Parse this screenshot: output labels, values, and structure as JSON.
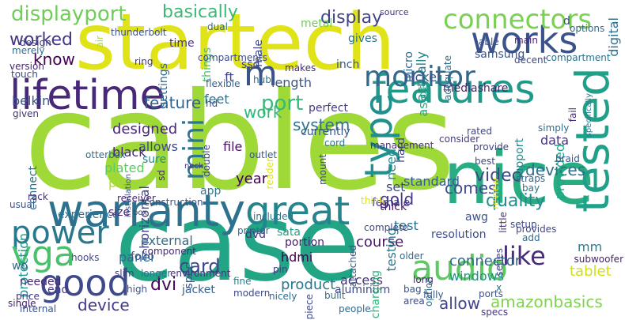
{
  "words": [
    {
      "text": "cables",
      "color": "#9fd938"
    },
    {
      "text": "case",
      "color": "#21a585"
    },
    {
      "text": "startech",
      "color": "#dfe318"
    },
    {
      "text": "nice",
      "color": "#27ad81"
    },
    {
      "text": "warranty",
      "color": "#2c728e"
    },
    {
      "text": "great",
      "color": "#25858e"
    },
    {
      "text": "lifetime",
      "color": "#482878"
    },
    {
      "text": "features",
      "color": "#1f9a8a"
    },
    {
      "text": "works",
      "color": "#3b528b"
    },
    {
      "text": "tested",
      "color": "#1fa088"
    },
    {
      "text": "audio",
      "color": "#5ec962"
    },
    {
      "text": "good",
      "color": "#3e4a89"
    },
    {
      "text": "power",
      "color": "#2a788e"
    },
    {
      "text": "vga",
      "color": "#4ac16d"
    },
    {
      "text": "type",
      "color": "#218f8d"
    },
    {
      "text": "monitor",
      "color": "#31688e"
    },
    {
      "text": "connectors",
      "color": "#7ad151"
    },
    {
      "text": "mini",
      "color": "#2b758e"
    },
    {
      "text": "m",
      "color": "#3b528b"
    },
    {
      "text": "like",
      "color": "#472c7a"
    },
    {
      "text": "displayport",
      "color": "#6ece58"
    },
    {
      "text": "basically",
      "color": "#3aba76"
    },
    {
      "text": "worked",
      "color": "#453781"
    },
    {
      "text": "display",
      "color": "#414487"
    },
    {
      "text": "know",
      "color": "#440154"
    },
    {
      "text": "port",
      "color": "#38b977"
    },
    {
      "text": "feature",
      "color": "#33638d"
    },
    {
      "text": "work",
      "color": "#31b57b"
    },
    {
      "text": "system",
      "color": "#2c728e"
    },
    {
      "text": "designed",
      "color": "#482576"
    },
    {
      "text": "video",
      "color": "#3f4788"
    },
    {
      "text": "quality",
      "color": "#228c8d"
    },
    {
      "text": "comes",
      "color": "#3e4c8a"
    },
    {
      "text": "devices",
      "color": "#2e6e8e"
    },
    {
      "text": "gold",
      "color": "#443a83"
    },
    {
      "text": "card",
      "color": "#3f4889"
    },
    {
      "text": "connector",
      "color": "#32648e"
    },
    {
      "text": "windows",
      "color": "#20928c"
    },
    {
      "text": "dvi",
      "color": "#450559"
    },
    {
      "text": "product",
      "color": "#2a788e"
    },
    {
      "text": "access",
      "color": "#46337f"
    },
    {
      "text": "allow",
      "color": "#414487"
    },
    {
      "text": "course",
      "color": "#481769"
    },
    {
      "text": "device",
      "color": "#443983"
    },
    {
      "text": "amazonbasics",
      "color": "#7fd34e"
    },
    {
      "text": "tablet",
      "color": "#d0e11c"
    },
    {
      "text": "external",
      "color": "#2e6f8e"
    },
    {
      "text": "panel",
      "color": "#306a8e"
    },
    {
      "text": "jacket",
      "color": "#35608d"
    },
    {
      "text": "spec",
      "color": "#3b528b"
    },
    {
      "text": "year",
      "color": "#440154"
    },
    {
      "text": "length",
      "color": "#38588c"
    },
    {
      "text": "feet",
      "color": "#2b758e"
    },
    {
      "text": "file",
      "color": "#471063"
    },
    {
      "text": "allows",
      "color": "#3e4a89"
    },
    {
      "text": "black",
      "color": "#482475"
    },
    {
      "text": "plated",
      "color": "#5ec962"
    },
    {
      "text": "pvc",
      "color": "#addc30"
    },
    {
      "text": "belkin",
      "color": "#39558c"
    },
    {
      "text": "ft",
      "color": "#414487"
    },
    {
      "text": "nickel",
      "color": "#3b528b"
    },
    {
      "text": "data",
      "color": "#46327e"
    },
    {
      "text": "standard",
      "color": "#365c8d"
    },
    {
      "text": "provided",
      "color": "#20a386"
    },
    {
      "text": "support",
      "color": "#24868e"
    },
    {
      "text": "actually",
      "color": "#26818e"
    },
    {
      "text": "samsung",
      "color": "#3a538b"
    },
    {
      "text": "mediashare",
      "color": "#481f70"
    },
    {
      "text": "metal",
      "color": "#6ece58"
    },
    {
      "text": "gives",
      "color": "#2d718e"
    },
    {
      "text": "male",
      "color": "#3f4788"
    },
    {
      "text": "things",
      "color": "#4ac16d"
    },
    {
      "text": "settings",
      "color": "#31688e"
    },
    {
      "text": "time",
      "color": "#463480"
    },
    {
      "text": "aside",
      "color": "#25ac82"
    },
    {
      "text": "need",
      "color": "#228d8d"
    },
    {
      "text": "hard",
      "color": "#3e4989"
    },
    {
      "text": "awg",
      "color": "#3b528b"
    },
    {
      "text": "test",
      "color": "#2e6e8e"
    },
    {
      "text": "testing",
      "color": "#2a778e"
    },
    {
      "text": "hdmi",
      "color": "#440154"
    },
    {
      "text": "sata",
      "color": "#1fa187"
    },
    {
      "text": "portion",
      "color": "#482173"
    },
    {
      "text": "resolution",
      "color": "#3e4a89"
    },
    {
      "text": "mm",
      "color": "#27808e"
    },
    {
      "text": "end",
      "color": "#453882"
    },
    {
      "text": "sure",
      "color": "#228c8d"
    },
    {
      "text": "folio",
      "color": "#3b528b"
    },
    {
      "text": "horizontal",
      "color": "#414487"
    },
    {
      "text": "dvd",
      "color": "#472d7b"
    },
    {
      "text": "perfect",
      "color": "#433e85"
    },
    {
      "text": "micro",
      "color": "#31688e"
    },
    {
      "text": "inch",
      "color": "#38588c"
    },
    {
      "text": "digital",
      "color": "#2d708e"
    },
    {
      "text": "little",
      "color": "#46307e"
    },
    {
      "text": "set",
      "color": "#3e4c8a"
    },
    {
      "text": "thick",
      "color": "#481668"
    },
    {
      "text": "female",
      "color": "#443b84"
    },
    {
      "text": "protection",
      "color": "#21918c"
    },
    {
      "text": "connect",
      "color": "#2c728e"
    },
    {
      "text": "needed",
      "color": "#482878"
    },
    {
      "text": "wo",
      "color": "#31688e"
    },
    {
      "text": "aluminum",
      "color": "#3f4889"
    },
    {
      "text": "charging",
      "color": "#2fb47c"
    },
    {
      "text": "experience",
      "color": "#2c728e"
    },
    {
      "text": "size",
      "color": "#482576"
    },
    {
      "text": "app",
      "color": "#2a788e"
    },
    {
      "text": "currently",
      "color": "#38588c"
    },
    {
      "text": "ssd",
      "color": "#414487"
    },
    {
      "text": "hd",
      "color": "#3b528b"
    },
    {
      "text": "flexible",
      "color": "#33638d"
    },
    {
      "text": "merely",
      "color": "#2e6e8e"
    },
    {
      "text": "design",
      "color": "#433e85"
    },
    {
      "text": "touch",
      "color": "#3f4788"
    },
    {
      "text": "given",
      "color": "#46327e"
    },
    {
      "text": "hub",
      "color": "#2c728e"
    },
    {
      "text": "dual",
      "color": "#31688e"
    },
    {
      "text": "makes",
      "color": "#472c7a"
    },
    {
      "text": "compartments",
      "color": "#3e4c8a"
    },
    {
      "text": "ring",
      "color": "#443983"
    },
    {
      "text": "version",
      "color": "#482878"
    },
    {
      "text": "air",
      "color": "#addc30"
    },
    {
      "text": "thunderbolt",
      "color": "#3b528b"
    },
    {
      "text": "source",
      "color": "#46337f"
    },
    {
      "text": "able",
      "color": "#3a538b"
    },
    {
      "text": "adequate",
      "color": "#2d708e"
    },
    {
      "text": "decent",
      "color": "#3e4989"
    },
    {
      "text": "compartment",
      "color": "#2c728e"
    },
    {
      "text": "options",
      "color": "#31688e"
    },
    {
      "text": "main",
      "color": "#482475"
    },
    {
      "text": "d",
      "color": "#3b528b"
    },
    {
      "text": "rated",
      "color": "#3f4889"
    },
    {
      "text": "simply",
      "color": "#2e6e8e"
    },
    {
      "text": "braid",
      "color": "#3b528b"
    },
    {
      "text": "fail",
      "color": "#482878"
    },
    {
      "text": "consider",
      "color": "#443b84"
    },
    {
      "text": "management",
      "color": "#46327e"
    },
    {
      "text": "cord",
      "color": "#2a788e"
    },
    {
      "text": "provide",
      "color": "#414487"
    },
    {
      "text": "best",
      "color": "#3e4a89"
    },
    {
      "text": "review",
      "color": "#dfe318"
    },
    {
      "text": "straps",
      "color": "#31688e"
    },
    {
      "text": "bay",
      "color": "#2c728e"
    },
    {
      "text": "usual",
      "color": "#3b528b"
    },
    {
      "text": "rack",
      "color": "#472d7b"
    },
    {
      "text": "outlet",
      "color": "#38588c"
    },
    {
      "text": "reader",
      "color": "#dfe318"
    },
    {
      "text": "mount",
      "color": "#3e4c8a"
    },
    {
      "text": "sd",
      "color": "#481f70"
    },
    {
      "text": "double",
      "color": "#3f4788"
    },
    {
      "text": "otterbox",
      "color": "#2e6e8e"
    },
    {
      "text": "installation",
      "color": "#3a538b"
    },
    {
      "text": "neck",
      "color": "#443983"
    },
    {
      "text": "receiver",
      "color": "#482878"
    },
    {
      "text": "construction",
      "color": "#3b528b"
    },
    {
      "text": "included",
      "color": "#2c728e"
    },
    {
      "text": "think",
      "color": "#dfe318"
    },
    {
      "text": "box",
      "color": "#414487"
    },
    {
      "text": "printer",
      "color": "#2e6e8e"
    },
    {
      "text": "complete",
      "color": "#3f4889"
    },
    {
      "text": "attached",
      "color": "#38588c"
    },
    {
      "text": "older",
      "color": "#31688e"
    },
    {
      "text": "component",
      "color": "#482576"
    },
    {
      "text": "hooks",
      "color": "#3e4989"
    },
    {
      "text": "slim",
      "color": "#443b84"
    },
    {
      "text": "longer",
      "color": "#2c728e"
    },
    {
      "text": "environment",
      "color": "#46327e"
    },
    {
      "text": "high",
      "color": "#3b528b"
    },
    {
      "text": "fine",
      "color": "#2a788e"
    },
    {
      "text": "modern",
      "color": "#3f4788"
    },
    {
      "text": "pin",
      "color": "#433e85"
    },
    {
      "text": "nicely",
      "color": "#31688e"
    },
    {
      "text": "piece",
      "color": "#3e4c8a"
    },
    {
      "text": "built",
      "color": "#2e6e8e"
    },
    {
      "text": "bag",
      "color": "#3a538b"
    },
    {
      "text": "long",
      "color": "#482878"
    },
    {
      "text": "option",
      "color": "#2c728e"
    },
    {
      "text": "ports",
      "color": "#3b528b"
    },
    {
      "text": "series",
      "color": "#414487"
    },
    {
      "text": "setup",
      "color": "#3f4889"
    },
    {
      "text": "add",
      "color": "#2e6e8e"
    },
    {
      "text": "subwoofer",
      "color": "#481f70"
    },
    {
      "text": "fully",
      "color": "#38588c"
    },
    {
      "text": "specs",
      "color": "#443983"
    },
    {
      "text": "area",
      "color": "#3e4989"
    },
    {
      "text": "people",
      "color": "#31688e"
    },
    {
      "text": "internal",
      "color": "#3b528b"
    },
    {
      "text": "single",
      "color": "#482475"
    },
    {
      "text": "price",
      "color": "#46327e"
    },
    {
      "text": "x",
      "color": "#2c728e"
    },
    {
      "text": "provides",
      "color": "#3f4788"
    },
    {
      "text": "specifically",
      "color": "#2a788e"
    }
  ]
}
